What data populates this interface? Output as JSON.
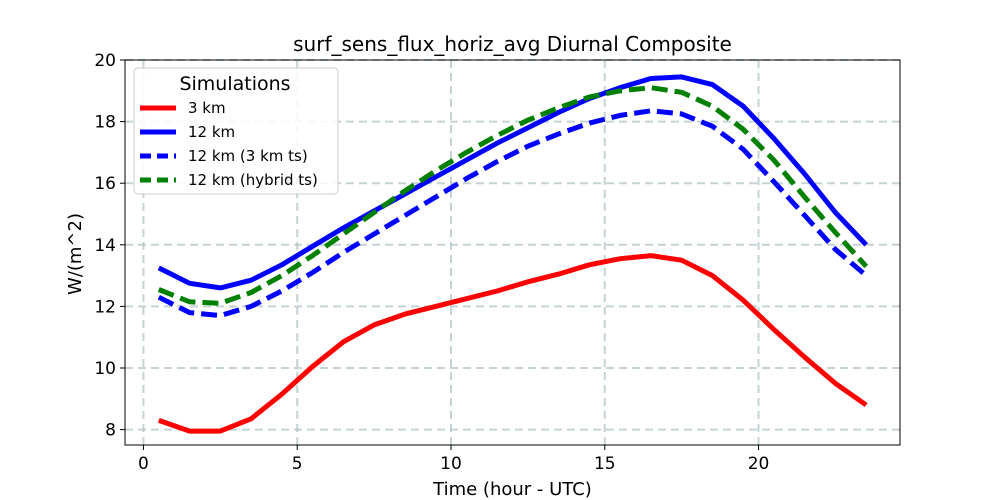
{
  "chart_data": {
    "type": "line",
    "title": "surf_sens_flux_horiz_avg Diurnal Composite",
    "xlabel": "Time (hour - UTC)",
    "ylabel": "W/(m^2)",
    "xlim": [
      -0.6,
      24.6
    ],
    "ylim": [
      7.5,
      20.0
    ],
    "xticks": [
      0,
      5,
      10,
      15,
      20
    ],
    "yticks": [
      8,
      10,
      12,
      14,
      16,
      18,
      20
    ],
    "grid": true,
    "legend": {
      "title": "Simulations",
      "placement": "top-left"
    },
    "x": [
      0.5,
      1.5,
      2.5,
      3.5,
      4.5,
      5.5,
      6.5,
      7.5,
      8.5,
      9.5,
      10.5,
      11.5,
      12.5,
      13.5,
      14.5,
      15.5,
      16.5,
      17.5,
      18.5,
      19.5,
      20.5,
      21.5,
      22.5,
      23.5
    ],
    "series": [
      {
        "name": "3 km",
        "color": "#ff0000",
        "style": "solid",
        "values": [
          8.3,
          7.95,
          7.95,
          8.35,
          9.15,
          10.05,
          10.85,
          11.4,
          11.75,
          12.0,
          12.25,
          12.5,
          12.8,
          13.05,
          13.35,
          13.55,
          13.65,
          13.5,
          13.0,
          12.2,
          11.25,
          10.35,
          9.5,
          8.8
        ]
      },
      {
        "name": "12 km",
        "color": "#0000ff",
        "style": "solid",
        "values": [
          13.25,
          12.75,
          12.6,
          12.85,
          13.35,
          13.95,
          14.55,
          15.1,
          15.65,
          16.2,
          16.75,
          17.3,
          17.8,
          18.3,
          18.75,
          19.1,
          19.4,
          19.45,
          19.2,
          18.5,
          17.45,
          16.3,
          15.05,
          14.0
        ]
      },
      {
        "name": "12 km (3 km ts)",
        "color": "#0000ff",
        "style": "dashed",
        "values": [
          12.3,
          11.8,
          11.7,
          12.0,
          12.5,
          13.1,
          13.75,
          14.35,
          14.95,
          15.55,
          16.15,
          16.7,
          17.2,
          17.6,
          17.95,
          18.2,
          18.35,
          18.25,
          17.85,
          17.1,
          16.05,
          14.95,
          13.85,
          13.0
        ]
      },
      {
        "name": "12 km (hybrid ts)",
        "color": "#008000",
        "style": "dashed",
        "values": [
          12.55,
          12.15,
          12.1,
          12.45,
          13.0,
          13.65,
          14.35,
          15.05,
          15.75,
          16.4,
          17.0,
          17.55,
          18.05,
          18.45,
          18.8,
          19.0,
          19.1,
          18.95,
          18.5,
          17.75,
          16.75,
          15.55,
          14.4,
          13.3
        ]
      }
    ]
  }
}
